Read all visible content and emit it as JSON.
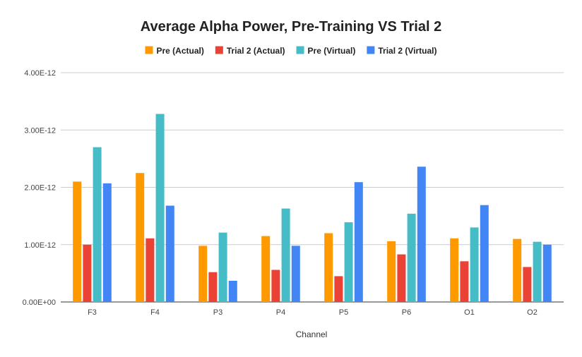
{
  "chart_data": {
    "type": "bar",
    "title": "Average Alpha Power, Pre-Training VS Trial 2",
    "xlabel": "Channel",
    "ylabel": "",
    "categories": [
      "F3",
      "F4",
      "P3",
      "P4",
      "P5",
      "P6",
      "O1",
      "O2"
    ],
    "series": [
      {
        "name": "Pre (Actual)",
        "color": "#ff9900",
        "values": [
          2.1e-12,
          2.25e-12,
          9.8e-13,
          1.15e-12,
          1.2e-12,
          1.06e-12,
          1.11e-12,
          1.1e-12
        ]
      },
      {
        "name": "Trial 2 (Actual)",
        "color": "#ea4335",
        "values": [
          1e-12,
          1.11e-12,
          5.2e-13,
          5.6e-13,
          4.5e-13,
          8.3e-13,
          7.1e-13,
          6.1e-13
        ]
      },
      {
        "name": "Pre (Virtual)",
        "color": "#46bdc6",
        "values": [
          2.7e-12,
          3.28e-12,
          1.21e-12,
          1.63e-12,
          1.39e-12,
          1.54e-12,
          1.3e-12,
          1.05e-12
        ]
      },
      {
        "name": "Trial 2 (Virtual)",
        "color": "#4285f4",
        "values": [
          2.07e-12,
          1.68e-12,
          3.7e-13,
          9.8e-13,
          2.09e-12,
          2.36e-12,
          1.69e-12,
          1e-12
        ]
      }
    ],
    "ylim": [
      0,
      4e-12
    ],
    "yticks": [
      {
        "value": 0,
        "label": "0.00E+00"
      },
      {
        "value": 1e-12,
        "label": "1.00E-12"
      },
      {
        "value": 2e-12,
        "label": "2.00E-12"
      },
      {
        "value": 3e-12,
        "label": "3.00E-12"
      },
      {
        "value": 4e-12,
        "label": "4.00E-12"
      }
    ],
    "grid": true,
    "legend_position": "top"
  }
}
